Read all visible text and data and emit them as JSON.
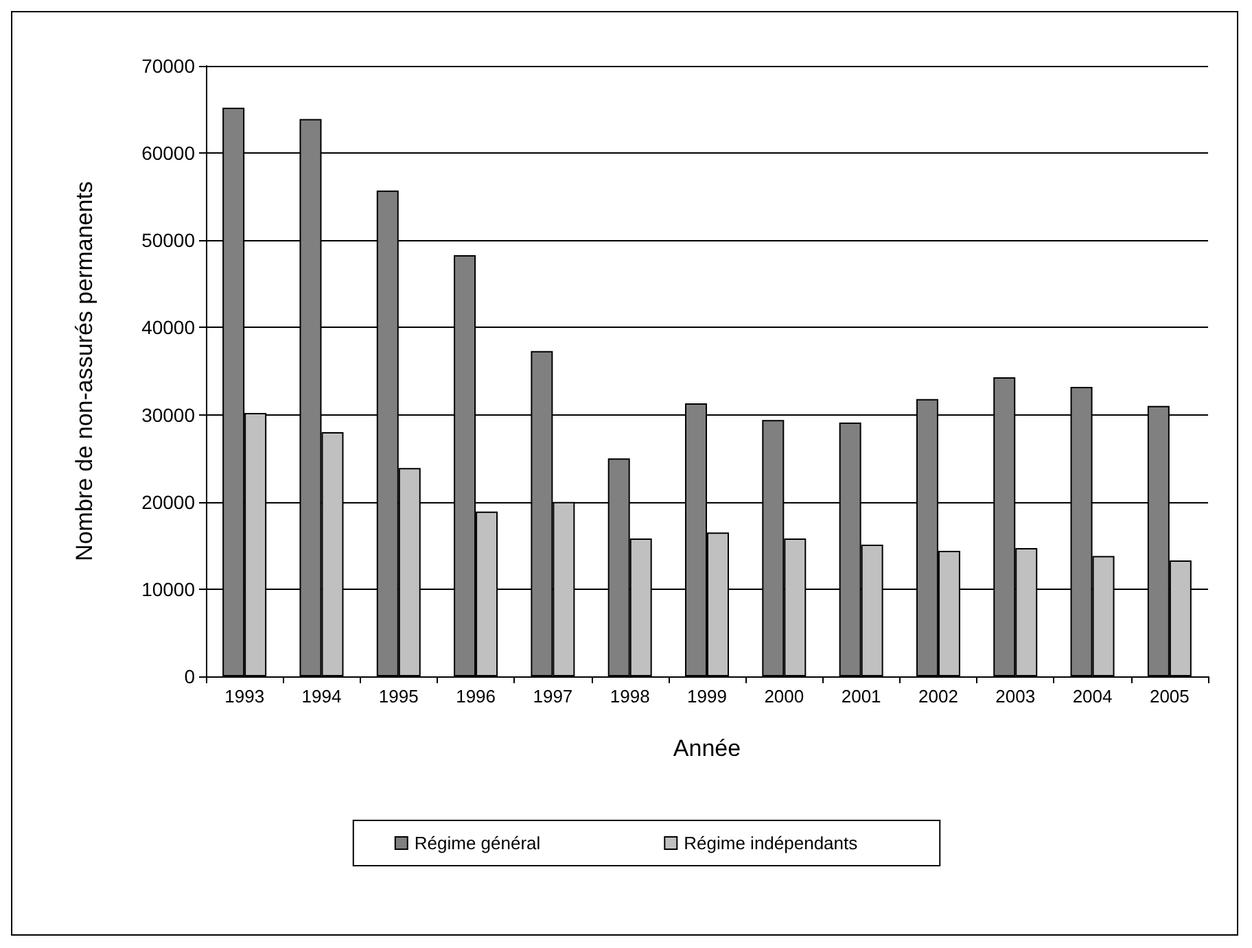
{
  "chart_data": {
    "type": "bar",
    "xlabel": "Année",
    "ylabel": "Nombre de non-assurés permanents",
    "categories": [
      "1993",
      "1994",
      "1995",
      "1996",
      "1997",
      "1998",
      "1999",
      "2000",
      "2001",
      "2002",
      "2003",
      "2004",
      "2005"
    ],
    "series": [
      {
        "name": "Régime général",
        "color": "#808080",
        "values": [
          65200,
          63900,
          55700,
          48300,
          37300,
          25000,
          31300,
          29400,
          29100,
          31800,
          34300,
          33200,
          31000
        ]
      },
      {
        "name": "Régime indépendants",
        "color": "#c0c0c0",
        "values": [
          30200,
          28000,
          23900,
          18900,
          20000,
          15800,
          16500,
          15800,
          15100,
          14400,
          14700,
          13800,
          13300
        ]
      }
    ],
    "ylim": [
      0,
      70000
    ],
    "yticks": [
      0,
      10000,
      20000,
      30000,
      40000,
      50000,
      60000,
      70000
    ],
    "grid": "y",
    "legend": "bottom"
  }
}
